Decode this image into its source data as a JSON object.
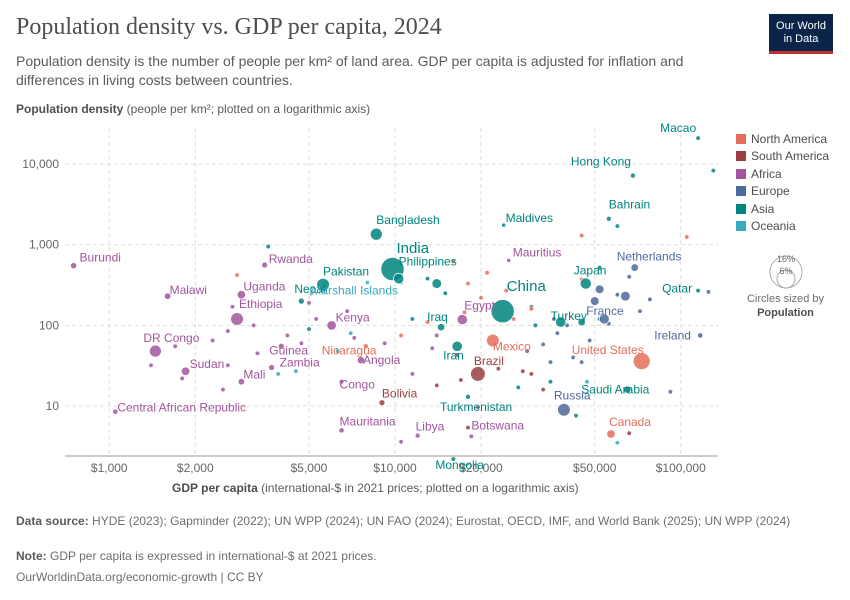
{
  "header": {
    "title": "Population density vs. GDP per capita, 2024",
    "subtitle": "Population density is the number of people per km² of land area. GDP per capita is adjusted for inflation and differences in living costs between countries.",
    "logo_line1": "Our World",
    "logo_line2": "in Data"
  },
  "axes": {
    "y_label_bold": "Population density",
    "y_label_rest": " (people per km²; plotted on a logarithmic axis)",
    "x_label_bold": "GDP per capita",
    "x_label_rest": " (international-$ in 2021 prices; plotted on a logarithmic axis)"
  },
  "legend": {
    "items": [
      {
        "label": "North America",
        "color": "#e56e5a"
      },
      {
        "label": "South America",
        "color": "#9a3e41"
      },
      {
        "label": "Africa",
        "color": "#a2559c"
      },
      {
        "label": "Europe",
        "color": "#4c6a9c"
      },
      {
        "label": "Asia",
        "color": "#00847e"
      },
      {
        "label": "Oceania",
        "color": "#38aaba"
      }
    ],
    "size_outer": "16%",
    "size_inner": "6%",
    "size_caption": "Circles sized by",
    "size_caption_bold": "Population"
  },
  "footer": {
    "source_label": "Data source:",
    "source_text": " HYDE (2023); Gapminder (2022); UN WPP (2024); UN FAO (2024); Eurostat, OECD, IMF, and World Bank (2025); UN WPP (2024)",
    "note_label": "Note:",
    "note_text": " GDP per capita is expressed in international-$ at 2021 prices.",
    "url": "OurWorldinData.org/economic-growth | CC BY"
  },
  "chart_data": {
    "type": "scatter",
    "title": "Population density vs. GDP per capita, 2024",
    "xlabel": "GDP per capita (international-$ in 2021 prices; plotted on a logarithmic axis)",
    "ylabel": "Population density (people per km²; plotted on a logarithmic axis)",
    "x_scale": "log",
    "y_scale": "log",
    "xlim": [
      700,
      135000
    ],
    "ylim": [
      2.4,
      28000
    ],
    "x_ticks": [
      1000,
      2000,
      5000,
      10000,
      20000,
      50000,
      100000
    ],
    "x_tick_labels": [
      "$1,000",
      "$2,000",
      "$5,000",
      "$10,000",
      "$20,000",
      "$50,000",
      "$100,000"
    ],
    "y_ticks": [
      10,
      100,
      1000,
      10000
    ],
    "y_tick_labels": [
      "10",
      "100",
      "1,000",
      "10,000"
    ],
    "grid": true,
    "legend_position": "right",
    "size_encoding": "population",
    "colors": {
      "North America": "#e56e5a",
      "South America": "#9a3e41",
      "Africa": "#a2559c",
      "Europe": "#4c6a9c",
      "Asia": "#00847e",
      "Oceania": "#38aaba"
    },
    "points": [
      {
        "label": "Macao",
        "x": 115000,
        "y": 21000,
        "r": "Asia",
        "s": 0.6
      },
      {
        "label": "Hong Kong",
        "x": 68000,
        "y": 7200,
        "r": "Asia",
        "s": 0.7
      },
      {
        "label": "Bahrain",
        "x": 56000,
        "y": 2100,
        "r": "Asia",
        "s": 0.7
      },
      {
        "label": "Maldives",
        "x": 24000,
        "y": 1750,
        "r": "Asia",
        "s": 0.5
      },
      {
        "label": "Bangladesh",
        "x": 8600,
        "y": 1350,
        "r": "Asia",
        "s": 4
      },
      {
        "label": "India",
        "x": 9800,
        "y": 500,
        "r": "Asia",
        "s": 15
      },
      {
        "label": "Philippines",
        "x": 10300,
        "y": 380,
        "r": "Asia",
        "s": 3
      },
      {
        "label": "Pakistan",
        "x": 5600,
        "y": 320,
        "r": "Asia",
        "s": 4.5
      },
      {
        "label": "Nepal",
        "x": 4700,
        "y": 200,
        "r": "Asia",
        "s": 1
      },
      {
        "label": "China",
        "x": 23800,
        "y": 150,
        "r": "Asia",
        "s": 15
      },
      {
        "label": "Japan",
        "x": 46500,
        "y": 330,
        "r": "Asia",
        "s": 3.5
      },
      {
        "label": "Turkey",
        "x": 38000,
        "y": 110,
        "r": "Asia",
        "s": 3
      },
      {
        "label": "Iraq",
        "x": 14500,
        "y": 95,
        "r": "Asia",
        "s": 1.5
      },
      {
        "label": "Iran",
        "x": 16500,
        "y": 55,
        "r": "Asia",
        "s": 3
      },
      {
        "label": "Turkmenistan",
        "x": 18000,
        "y": 13,
        "r": "Asia",
        "s": 0.7
      },
      {
        "label": "Saudi Arabia",
        "x": 65000,
        "y": 16,
        "r": "Asia",
        "s": 1.5
      },
      {
        "label": "Qatar",
        "x": 115000,
        "y": 270,
        "r": "Asia",
        "s": 0.6
      },
      {
        "label": "Mongolia",
        "x": 16000,
        "y": 2.2,
        "r": "Asia",
        "s": 0.6
      },
      {
        "label": "Burundi",
        "x": 750,
        "y": 550,
        "r": "Africa",
        "s": 1.1
      },
      {
        "label": "Rwanda",
        "x": 3500,
        "y": 560,
        "r": "Africa",
        "s": 1
      },
      {
        "label": "Malawi",
        "x": 1600,
        "y": 230,
        "r": "Africa",
        "s": 1.2
      },
      {
        "label": "Uganda",
        "x": 2900,
        "y": 240,
        "r": "Africa",
        "s": 2
      },
      {
        "label": "Ethiopia",
        "x": 2800,
        "y": 120,
        "r": "Africa",
        "s": 4.5
      },
      {
        "label": "Kenya",
        "x": 6000,
        "y": 100,
        "r": "Africa",
        "s": 2.5
      },
      {
        "label": "DR Congo",
        "x": 1450,
        "y": 48,
        "r": "Africa",
        "s": 4
      },
      {
        "label": "Sudan",
        "x": 1850,
        "y": 27,
        "r": "Africa",
        "s": 2
      },
      {
        "label": "Mali",
        "x": 2900,
        "y": 20,
        "r": "Africa",
        "s": 1.2
      },
      {
        "label": "Zambia",
        "x": 3700,
        "y": 30,
        "r": "Africa",
        "s": 1
      },
      {
        "label": "Egypt",
        "x": 17200,
        "y": 118,
        "r": "Africa",
        "s": 3
      },
      {
        "label": "Angola",
        "x": 7600,
        "y": 37,
        "r": "Africa",
        "s": 1.5
      },
      {
        "label": "Congo",
        "x": 6500,
        "y": 20,
        "r": "Africa",
        "s": 0.7
      },
      {
        "label": "Mauritius",
        "x": 25000,
        "y": 640,
        "r": "Africa",
        "s": 0.5
      },
      {
        "label": "Central African Republic",
        "x": 1050,
        "y": 8.5,
        "r": "Africa",
        "s": 0.8
      },
      {
        "label": "Mauritania",
        "x": 6500,
        "y": 5,
        "r": "Africa",
        "s": 0.8
      },
      {
        "label": "Libya",
        "x": 12000,
        "y": 4.3,
        "r": "Africa",
        "s": 0.7
      },
      {
        "label": "Botswana",
        "x": 18500,
        "y": 4.2,
        "r": "Africa",
        "s": 0.6
      },
      {
        "label": "Guinea",
        "x": 4000,
        "y": 55,
        "r": "Africa",
        "s": 1
      },
      {
        "label": "Netherlands",
        "x": 69000,
        "y": 520,
        "r": "Europe",
        "s": 1.6
      },
      {
        "label": "France",
        "x": 54000,
        "y": 120,
        "r": "Europe",
        "s": 2.8
      },
      {
        "label": "Russia",
        "x": 39000,
        "y": 9,
        "r": "Europe",
        "s": 4.5
      },
      {
        "label": "Ireland",
        "x": 117000,
        "y": 75,
        "r": "Europe",
        "s": 0.8
      },
      {
        "label": "United States",
        "x": 73000,
        "y": 36,
        "r": "North America",
        "s": 8
      },
      {
        "label": "Mexico",
        "x": 22000,
        "y": 65,
        "r": "North America",
        "s": 4.5
      },
      {
        "label": "Nicaragua",
        "x": 7900,
        "y": 55,
        "r": "North America",
        "s": 0.8
      },
      {
        "label": "Canada",
        "x": 57000,
        "y": 4.5,
        "r": "North America",
        "s": 2
      },
      {
        "label": "Brazil",
        "x": 19500,
        "y": 25,
        "r": "South America",
        "s": 6
      },
      {
        "label": "Bolivia",
        "x": 9000,
        "y": 11,
        "r": "South America",
        "s": 1
      },
      {
        "label": "Marshall Islands",
        "x": 8000,
        "y": 340,
        "r": "Oceania",
        "s": 0.5
      }
    ],
    "extra_points": [
      {
        "x": 3600,
        "y": 950,
        "r": "Asia"
      },
      {
        "x": 13000,
        "y": 380,
        "r": "Asia"
      },
      {
        "x": 14000,
        "y": 330,
        "r": "Asia",
        "s": 2.5
      },
      {
        "x": 52000,
        "y": 520,
        "r": "Asia"
      },
      {
        "x": 60000,
        "y": 1700,
        "r": "Asia"
      },
      {
        "x": 130000,
        "y": 8300,
        "r": "Asia"
      },
      {
        "x": 11500,
        "y": 120,
        "r": "Asia"
      },
      {
        "x": 31000,
        "y": 100,
        "r": "Asia"
      },
      {
        "x": 45000,
        "y": 110,
        "r": "Asia",
        "s": 1.5
      },
      {
        "x": 35000,
        "y": 20,
        "r": "Asia"
      },
      {
        "x": 27000,
        "y": 17,
        "r": "Asia"
      },
      {
        "x": 43000,
        "y": 7.6,
        "r": "Asia"
      },
      {
        "x": 52000,
        "y": 120,
        "r": "Asia"
      },
      {
        "x": 5000,
        "y": 90,
        "r": "Asia"
      },
      {
        "x": 15000,
        "y": 250,
        "r": "Asia"
      },
      {
        "x": 2600,
        "y": 85,
        "r": "Africa"
      },
      {
        "x": 2300,
        "y": 65,
        "r": "Africa"
      },
      {
        "x": 1700,
        "y": 55,
        "r": "Africa"
      },
      {
        "x": 1400,
        "y": 32,
        "r": "Africa"
      },
      {
        "x": 2600,
        "y": 32,
        "r": "Africa"
      },
      {
        "x": 3300,
        "y": 45,
        "r": "Africa"
      },
      {
        "x": 4200,
        "y": 75,
        "r": "Africa"
      },
      {
        "x": 5300,
        "y": 120,
        "r": "Africa"
      },
      {
        "x": 5000,
        "y": 190,
        "r": "Africa"
      },
      {
        "x": 6800,
        "y": 150,
        "r": "Africa"
      },
      {
        "x": 2700,
        "y": 170,
        "r": "Africa"
      },
      {
        "x": 2500,
        "y": 16,
        "r": "Africa"
      },
      {
        "x": 1800,
        "y": 22,
        "r": "Africa"
      },
      {
        "x": 7200,
        "y": 70,
        "r": "Africa"
      },
      {
        "x": 10500,
        "y": 3.6,
        "r": "Africa"
      },
      {
        "x": 19500,
        "y": 9.6,
        "r": "Africa"
      },
      {
        "x": 3200,
        "y": 100,
        "r": "Africa"
      },
      {
        "x": 4700,
        "y": 60,
        "r": "Africa"
      },
      {
        "x": 9200,
        "y": 60,
        "r": "Africa"
      },
      {
        "x": 13500,
        "y": 52,
        "r": "Africa"
      },
      {
        "x": 11500,
        "y": 25,
        "r": "Africa"
      },
      {
        "x": 14000,
        "y": 75,
        "r": "Africa"
      },
      {
        "x": 33000,
        "y": 58,
        "r": "Europe"
      },
      {
        "x": 37000,
        "y": 80,
        "r": "Europe"
      },
      {
        "x": 40000,
        "y": 100,
        "r": "Europe"
      },
      {
        "x": 45000,
        "y": 35,
        "r": "Europe"
      },
      {
        "x": 48000,
        "y": 65,
        "r": "Europe"
      },
      {
        "x": 50000,
        "y": 200,
        "r": "Europe",
        "s": 2
      },
      {
        "x": 52000,
        "y": 280,
        "r": "Europe",
        "s": 2
      },
      {
        "x": 56000,
        "y": 105,
        "r": "Europe"
      },
      {
        "x": 60000,
        "y": 240,
        "r": "Europe"
      },
      {
        "x": 64000,
        "y": 230,
        "r": "Europe",
        "s": 2.5
      },
      {
        "x": 66000,
        "y": 400,
        "r": "Europe"
      },
      {
        "x": 72000,
        "y": 150,
        "r": "Europe"
      },
      {
        "x": 78000,
        "y": 210,
        "r": "Europe"
      },
      {
        "x": 92000,
        "y": 15,
        "r": "Europe"
      },
      {
        "x": 125000,
        "y": 260,
        "r": "Europe"
      },
      {
        "x": 42000,
        "y": 40,
        "r": "Europe"
      },
      {
        "x": 36000,
        "y": 120,
        "r": "Europe"
      },
      {
        "x": 29000,
        "y": 48,
        "r": "Europe"
      },
      {
        "x": 35000,
        "y": 35,
        "r": "Europe"
      },
      {
        "x": 30000,
        "y": 170,
        "r": "Europe"
      },
      {
        "x": 20000,
        "y": 220,
        "r": "North America"
      },
      {
        "x": 18000,
        "y": 330,
        "r": "North America"
      },
      {
        "x": 24500,
        "y": 270,
        "r": "North America"
      },
      {
        "x": 45000,
        "y": 1300,
        "r": "North America"
      },
      {
        "x": 105000,
        "y": 1250,
        "r": "North America"
      },
      {
        "x": 13000,
        "y": 110,
        "r": "North America"
      },
      {
        "x": 10500,
        "y": 75,
        "r": "North America"
      },
      {
        "x": 17500,
        "y": 145,
        "r": "North America"
      },
      {
        "x": 30000,
        "y": 160,
        "r": "North America"
      },
      {
        "x": 16000,
        "y": 620,
        "r": "North America"
      },
      {
        "x": 26000,
        "y": 120,
        "r": "North America"
      },
      {
        "x": 21000,
        "y": 450,
        "r": "North America"
      },
      {
        "x": 2800,
        "y": 420,
        "r": "North America"
      },
      {
        "x": 45000,
        "y": 370,
        "r": "North America"
      },
      {
        "x": 17000,
        "y": 21,
        "r": "South America"
      },
      {
        "x": 23000,
        "y": 29,
        "r": "South America"
      },
      {
        "x": 28000,
        "y": 27,
        "r": "South America"
      },
      {
        "x": 30000,
        "y": 25,
        "r": "South America"
      },
      {
        "x": 16500,
        "y": 43,
        "r": "South America"
      },
      {
        "x": 33000,
        "y": 16,
        "r": "South America"
      },
      {
        "x": 14000,
        "y": 18,
        "r": "South America"
      },
      {
        "x": 18000,
        "y": 5.4,
        "r": "South America"
      },
      {
        "x": 66000,
        "y": 4.6,
        "r": "South America"
      },
      {
        "x": 4500,
        "y": 27,
        "r": "Oceania"
      },
      {
        "x": 3900,
        "y": 25,
        "r": "Oceania"
      },
      {
        "x": 60000,
        "y": 3.5,
        "r": "Oceania"
      },
      {
        "x": 47000,
        "y": 20,
        "r": "Oceania"
      },
      {
        "x": 10500,
        "y": 340,
        "r": "Oceania"
      },
      {
        "x": 7000,
        "y": 80,
        "r": "Oceania"
      },
      {
        "x": 6300,
        "y": 48,
        "r": "Oceania"
      }
    ]
  }
}
